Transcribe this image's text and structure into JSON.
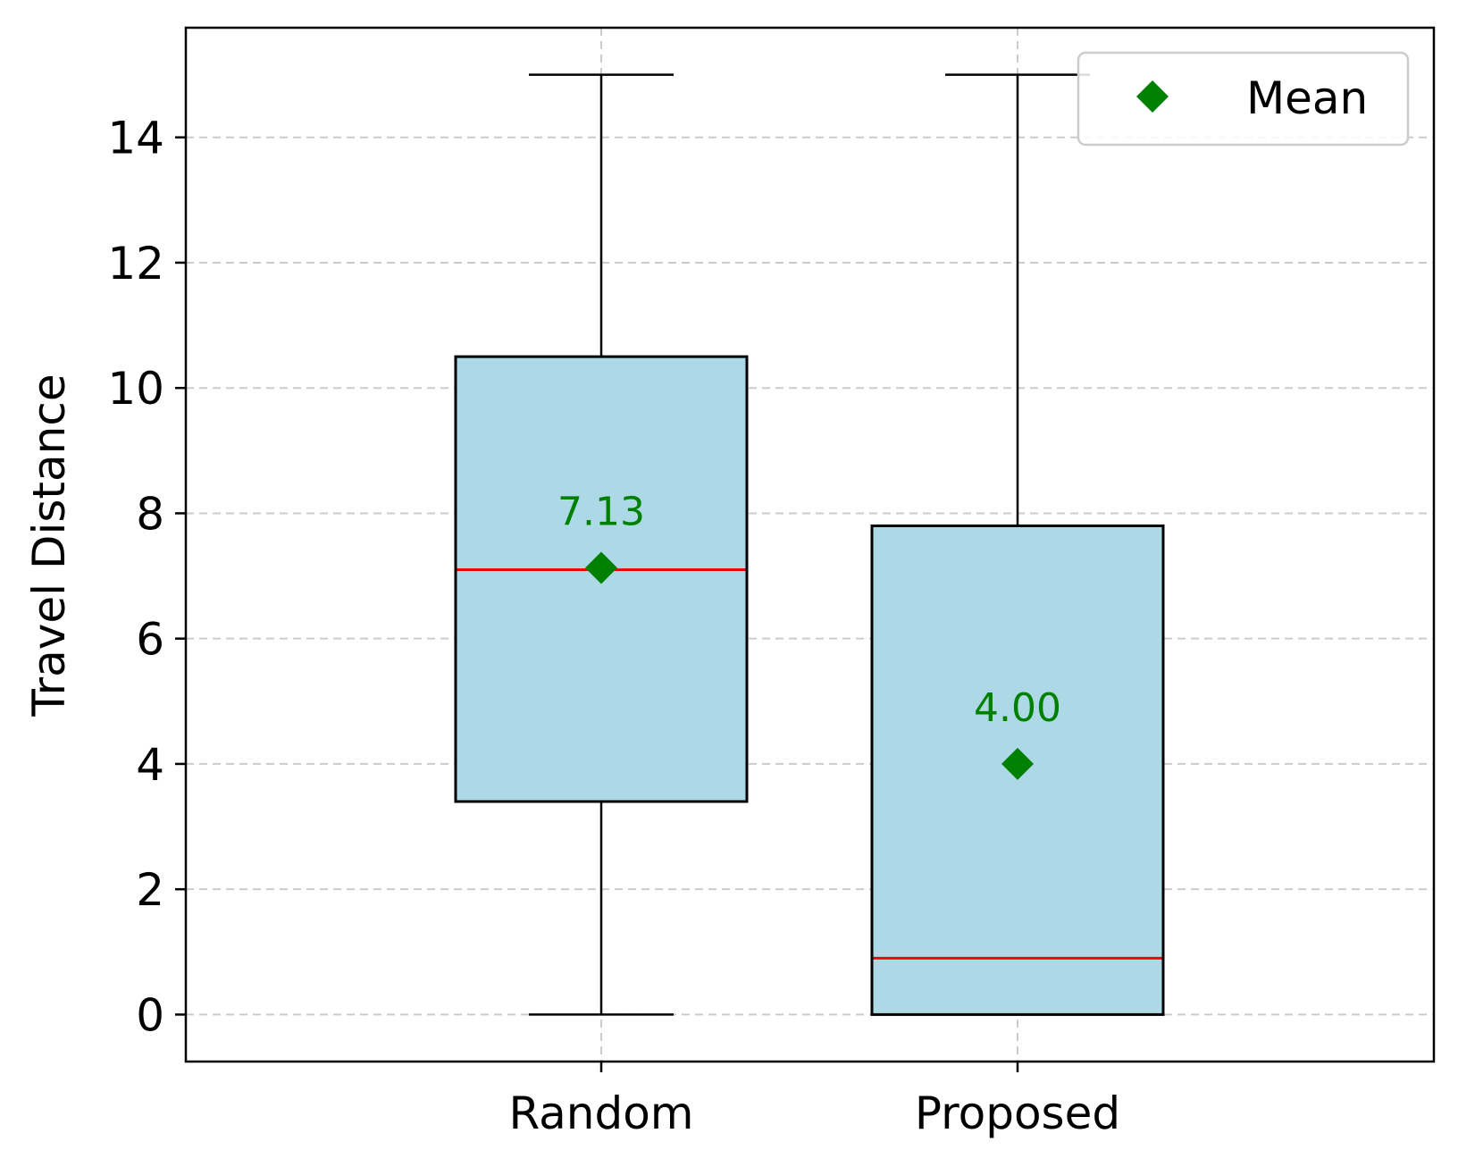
{
  "chart_data": {
    "type": "box",
    "title": "",
    "xlabel": "",
    "ylabel": "Travel Distance",
    "categories": [
      "Random",
      "Proposed"
    ],
    "ylim": [
      -0.75,
      15.75
    ],
    "yticks": [
      0,
      2,
      4,
      6,
      8,
      10,
      12,
      14
    ],
    "ytick_labels": [
      "0",
      "2",
      "4",
      "6",
      "8",
      "10",
      "12",
      "14"
    ],
    "grid": true,
    "boxes": [
      {
        "category": "Random",
        "whisker_low": 0,
        "q1": 3.4,
        "median": 7.1,
        "q3": 10.5,
        "whisker_high": 15,
        "mean": 7.13,
        "mean_label": "7.13"
      },
      {
        "category": "Proposed",
        "whisker_low": 0,
        "q1": 0,
        "median": 0.9,
        "q3": 7.8,
        "whisker_high": 15,
        "mean": 4.0,
        "mean_label": "4.00"
      }
    ],
    "legend": {
      "position": "top-right",
      "entries": [
        {
          "label": "Mean",
          "marker": "diamond"
        }
      ]
    },
    "colors": {
      "box_fill": "#add8e6",
      "box_edge": "#000000",
      "median": "#ee0000",
      "mean": "#008000",
      "grid": "#cccccc"
    }
  }
}
